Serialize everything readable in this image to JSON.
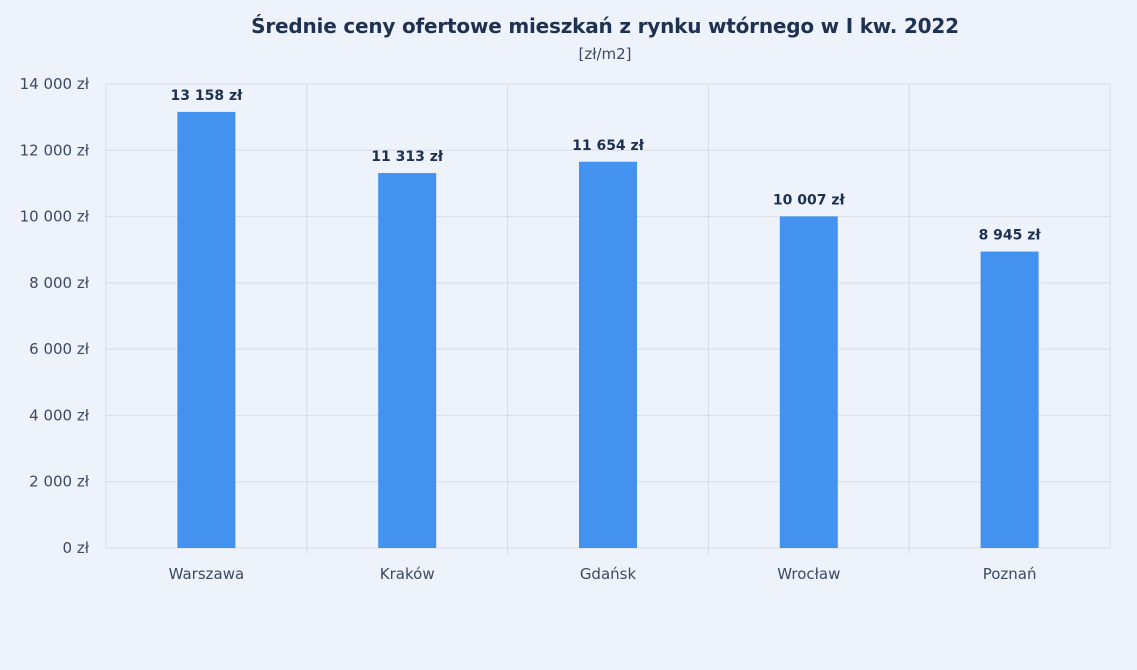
{
  "chart_data": {
    "type": "bar",
    "title": "Średnie ceny ofertowe mieszkań z rynku wtórnego w I kw. 2022",
    "subtitle": "[zł/m2]",
    "xlabel": "",
    "ylabel": "",
    "categories": [
      "Warszawa",
      "Kraków",
      "Gdańsk",
      "Wrocław",
      "Poznań"
    ],
    "values": [
      13158,
      11313,
      11654,
      10007,
      8945
    ],
    "data_labels": [
      "13 158 zł",
      "11 313 zł",
      "11 654 zł",
      "10 007 zł",
      "8 945 zł"
    ],
    "ylim": [
      0,
      14000
    ],
    "yticks": [
      0,
      2000,
      4000,
      6000,
      8000,
      10000,
      12000,
      14000
    ],
    "ytick_labels": [
      "0 zł",
      "2 000 zł",
      "4 000 zł",
      "6 000 zł",
      "8 000 zł",
      "10 000 zł",
      "12 000 zł",
      "14 000 zł"
    ],
    "grid": true,
    "legend": "none",
    "colors": {
      "bar": "#4492f0",
      "grid": "#d7dce6",
      "background": "#eef2fb",
      "text": "#1f3150"
    }
  }
}
